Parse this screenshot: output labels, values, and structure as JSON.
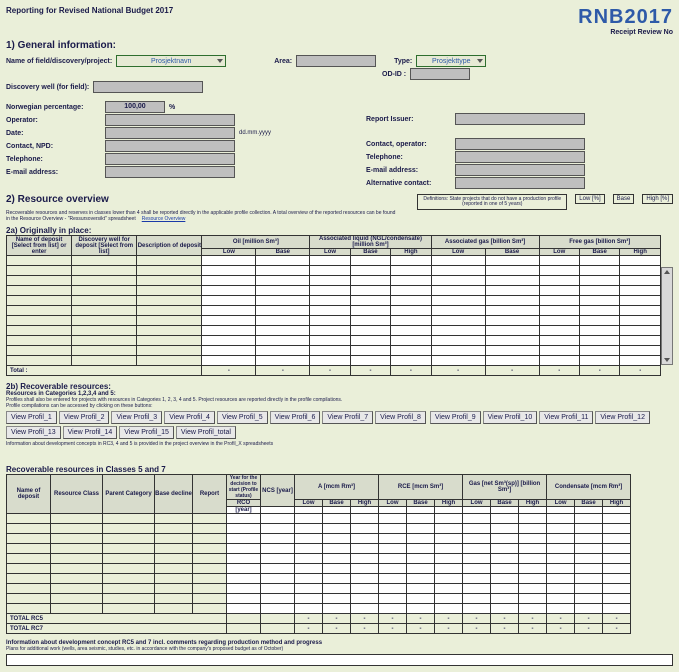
{
  "header": {
    "title": "Reporting for Revised National Budget 2017",
    "logo": "RNB2017",
    "receipt_label": "Receipt Review No"
  },
  "sections": {
    "s1": "1) General information:",
    "s2": "2) Resource overview",
    "s2a": "2a) Originally in place:",
    "s2b": "2b) Recoverable resources:",
    "rec57": "Recoverable resources in Classes 5 and 7"
  },
  "gi": {
    "name_field": "Name of field/discovery/project:",
    "name_value": "Prosjektnavn",
    "area": "Area:",
    "type": "Type:",
    "type_value": "Prosjekttype",
    "odid": "OD-ID :",
    "disc_well": "Discovery well (for field):",
    "nor_pct": "Norwegian percentage:",
    "nor_pct_val": "100,00",
    "pct_mark": "%",
    "operator": "Operator:",
    "date": "Date:",
    "date_hint": "dd.mm.yyyy",
    "contact_npd": "Contact, NPD:",
    "telephone": "Telephone:",
    "email": "E-mail address:",
    "report_issuer": "Report Issuer:",
    "contact_op": "Contact, operator:",
    "alt_contact": "Alternative contact:"
  },
  "rc": {
    "note": "Definitions: State projects that do not have a production profile (reported in one of 5 years)",
    "low": "Low [%]",
    "base": "Base",
    "high": "High [%]",
    "blurb1": "Recoverable resources and reserves in classes lower than 4 shall be reported directly in the applicable profile collection. A total overview of the reported resources can be found",
    "blurb2": "in the Resource Overview - \"Ressursoversikt\" spreadsheet",
    "link": "Resource Overview"
  },
  "t2a": {
    "h_dep": "Name of deposit [Select from list] or enter",
    "h_dw": "Discovery well for deposit [Select from list]",
    "h_desc": "Description of deposit",
    "h_oil": "Oil [million Sm³]",
    "h_liq": "Associated liquid (NGL/condensate) [million Sm³]",
    "h_gas": "Associated gas [billion Sm³]",
    "h_fg": "Free gas [billion Sm³]",
    "sub_lo": "Low",
    "sub_ba": "Base",
    "sub_hi": "High",
    "total": "Total :",
    "total_dash": "-"
  },
  "t2b": {
    "line1": "Resources in Categories 1,2,3,4 and 5:",
    "line2": "Profiles shall also be entered for projects with resources in Categories 1, 2, 3, 4 and 5. Project resources are reported directly in the profile compilations.",
    "line3": "Profile compilations can be accessed by clicking on these buttons:",
    "btns": [
      "View Profil_1",
      "View Profil_2",
      "View Profil_3",
      "View Profil_4",
      "View Profil_5",
      "View Profil_6",
      "View Profil_7",
      "View Profil_8",
      "View Profil_9",
      "View Profil_10",
      "View Profil_11",
      "View Profil_12",
      "View Profil_13",
      "View Profil_14",
      "View Profil_15",
      "View Profil_total"
    ],
    "note": "Information about development concepts in RC3, 4 and 5 is provided in the project overview in the Profil_X spreadsheets"
  },
  "t57": {
    "h_dep": "Name of deposit",
    "h_rc": "Resource Class",
    "h_pc": "Parent Category",
    "h_bd": "Base decline",
    "h_rep": "Report",
    "h_year": "Year for the decision to start (Profile status)",
    "h_rco": "RCO",
    "h_ncs": "NCS [year]",
    "h_a": "A [mcm Rm³]",
    "h_rce": "RCE [mcm Sm³]",
    "h_gas": "Gas [net Sm³(sp)] [billion Sm³]",
    "h_cond": "Condensate [mcm Rm³]",
    "sub_lo": "Low",
    "sub_ba": "Base",
    "sub_hi": "High",
    "tot_rc5": "TOTAL RC5",
    "tot_rc7": "TOTAL RC7"
  },
  "foot": {
    "l1": "Information about development concept RC5 and 7 incl. comments regarding production method and progress",
    "l2": "Plans for additional work (wells, area seismic, studies, etc. in accordance with the company's proposed budget as of October)"
  }
}
